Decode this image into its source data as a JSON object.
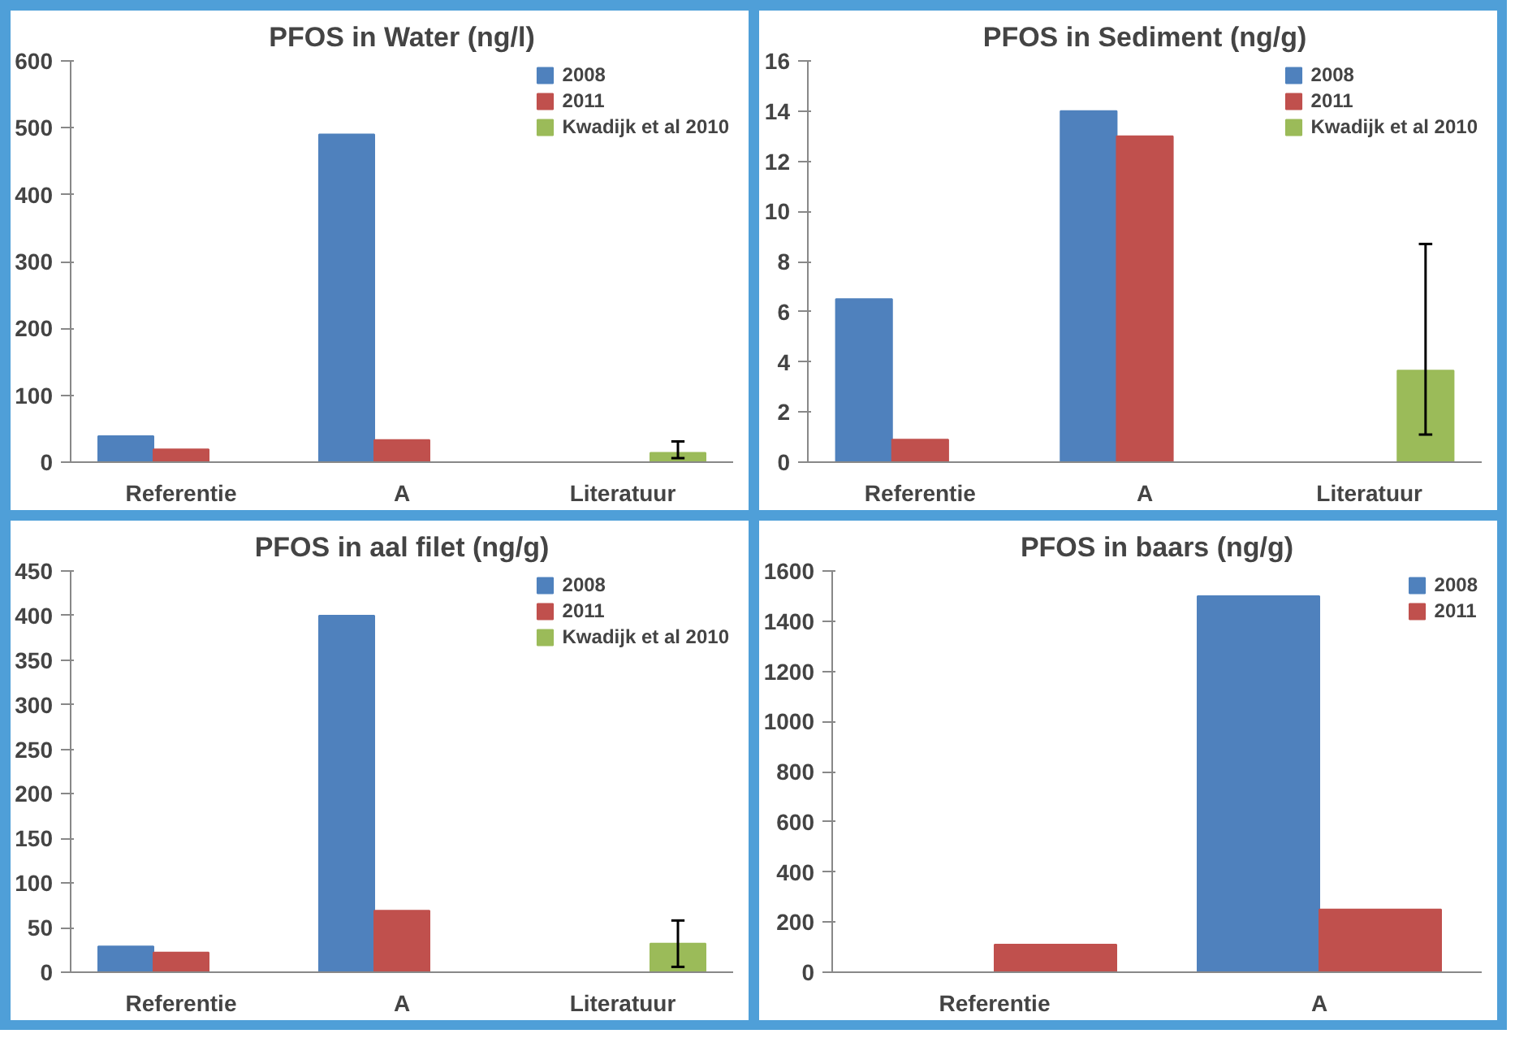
{
  "chart_data": [
    {
      "type": "bar",
      "title": "PFOS in Water (ng/l)",
      "categories": [
        "Referentie",
        "A",
        "Literatuur"
      ],
      "ylim": [
        0,
        600
      ],
      "yticks": [
        0,
        100,
        200,
        300,
        400,
        500,
        600
      ],
      "grid": false,
      "legend": "top right",
      "series": [
        {
          "name": "2008",
          "color": "#4f81bd",
          "values": [
            39,
            490,
            null
          ]
        },
        {
          "name": "2011",
          "color": "#c0504d",
          "values": [
            19,
            33,
            null
          ]
        },
        {
          "name": "Kwadijk et al 2010",
          "color": "#9bbb59",
          "values": [
            null,
            null,
            14
          ],
          "errors": [
            null,
            null,
            [
              6,
              31
            ]
          ]
        }
      ]
    },
    {
      "type": "bar",
      "title": "PFOS in Sediment (ng/g)",
      "categories": [
        "Referentie",
        "A",
        "Literatuur"
      ],
      "ylim": [
        0,
        16
      ],
      "yticks": [
        0,
        2,
        4,
        6,
        8,
        10,
        12,
        14,
        16
      ],
      "grid": false,
      "legend": "top right",
      "series": [
        {
          "name": "2008",
          "color": "#4f81bd",
          "values": [
            6.5,
            14,
            null
          ]
        },
        {
          "name": "2011",
          "color": "#c0504d",
          "values": [
            0.9,
            13,
            null
          ]
        },
        {
          "name": "Kwadijk et al 2010",
          "color": "#9bbb59",
          "values": [
            null,
            null,
            3.65
          ],
          "errors": [
            null,
            null,
            [
              1.1,
              8.7
            ]
          ]
        }
      ]
    },
    {
      "type": "bar",
      "title": "PFOS in aal filet (ng/g)",
      "categories": [
        "Referentie",
        "A",
        "Literatuur"
      ],
      "ylim": [
        0,
        450
      ],
      "yticks": [
        0,
        50,
        100,
        150,
        200,
        250,
        300,
        350,
        400,
        450
      ],
      "grid": false,
      "legend": "top right",
      "series": [
        {
          "name": "2008",
          "color": "#4f81bd",
          "values": [
            29,
            400,
            null
          ]
        },
        {
          "name": "2011",
          "color": "#c0504d",
          "values": [
            22,
            69,
            null
          ]
        },
        {
          "name": "Kwadijk et al 2010",
          "color": "#9bbb59",
          "values": [
            null,
            null,
            32
          ],
          "errors": [
            null,
            null,
            [
              6,
              58
            ]
          ]
        }
      ]
    },
    {
      "type": "bar",
      "title": "PFOS in baars (ng/g)",
      "categories": [
        "Referentie",
        "A"
      ],
      "ylim": [
        0,
        1600
      ],
      "yticks": [
        0,
        200,
        400,
        600,
        800,
        1000,
        1200,
        1400,
        1600
      ],
      "grid": false,
      "legend": "top right",
      "series": [
        {
          "name": "2008",
          "color": "#4f81bd",
          "values": [
            null,
            1500
          ]
        },
        {
          "name": "2011",
          "color": "#c0504d",
          "values": [
            110,
            250
          ]
        }
      ]
    }
  ]
}
